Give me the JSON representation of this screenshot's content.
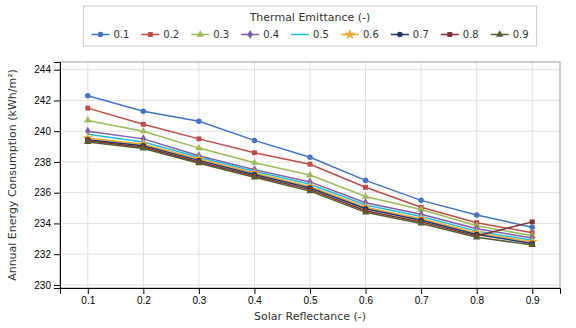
{
  "chart_data": {
    "type": "line",
    "title": "Thermal Emittance (-)",
    "xlabel": "Solar Reflectance (-)",
    "ylabel": "Annual Energy Consumption (kWh/m²)",
    "x": [
      0.1,
      0.2,
      0.3,
      0.4,
      0.5,
      0.6,
      0.7,
      0.8,
      0.9
    ],
    "xlim": [
      0.05,
      0.95
    ],
    "ylim": [
      229.8,
      244.5
    ],
    "xticks": [
      0.1,
      0.2,
      0.3,
      0.4,
      0.5,
      0.6,
      0.7,
      0.8,
      0.9
    ],
    "yticks": [
      230,
      232,
      234,
      236,
      238,
      240,
      242,
      244
    ],
    "grid": true,
    "legend": "top",
    "series": [
      {
        "name": "0.1",
        "color": "#4472C4",
        "marker": "circle",
        "values": [
          242.3,
          241.3,
          240.65,
          239.4,
          238.3,
          236.8,
          235.5,
          234.55,
          233.75
        ]
      },
      {
        "name": "0.2",
        "color": "#BE4B48",
        "marker": "square",
        "values": [
          241.5,
          240.45,
          239.5,
          238.6,
          237.85,
          236.35,
          235.05,
          234.05,
          233.4
        ]
      },
      {
        "name": "0.3",
        "color": "#9BBB59",
        "marker": "triangle",
        "values": [
          240.7,
          240.0,
          238.9,
          237.95,
          237.15,
          235.75,
          234.9,
          233.85,
          233.2
        ]
      },
      {
        "name": "0.4",
        "color": "#7B5EA7",
        "marker": "diamond",
        "values": [
          240.0,
          239.5,
          238.4,
          237.5,
          236.7,
          235.35,
          234.6,
          233.65,
          233.05
        ]
      },
      {
        "name": "0.5",
        "color": "#23BCDE",
        "marker": "none",
        "values": [
          239.8,
          239.3,
          238.3,
          237.4,
          236.55,
          235.2,
          234.45,
          233.5,
          232.9
        ]
      },
      {
        "name": "0.6",
        "color": "#F0A830",
        "marker": "star",
        "values": [
          239.55,
          239.15,
          238.2,
          237.28,
          236.4,
          235.05,
          234.3,
          233.38,
          232.8
        ]
      },
      {
        "name": "0.7",
        "color": "#1F3864",
        "marker": "circle",
        "values": [
          239.45,
          239.05,
          238.1,
          237.18,
          236.3,
          234.95,
          234.2,
          233.28,
          232.7
        ]
      },
      {
        "name": "0.8",
        "color": "#7F3030",
        "marker": "square",
        "values": [
          239.38,
          238.95,
          238.0,
          237.08,
          236.2,
          234.82,
          234.1,
          233.18,
          234.1
        ]
      },
      {
        "name": "0.9",
        "color": "#5B5B2F",
        "marker": "triangle",
        "values": [
          239.3,
          238.88,
          237.92,
          237.0,
          236.1,
          234.72,
          234.0,
          233.1,
          232.6
        ]
      }
    ]
  }
}
